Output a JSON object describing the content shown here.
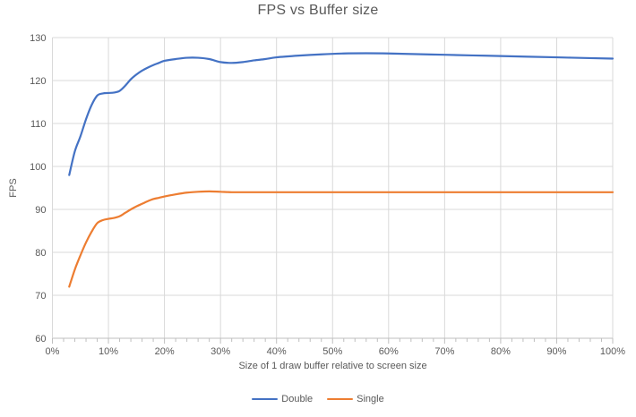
{
  "chart_data": {
    "type": "line",
    "title": "FPS vs Buffer size",
    "xlabel": "Size of 1 draw buffer relative to screen size",
    "ylabel": "FPS",
    "xlim": [
      0,
      100
    ],
    "ylim": [
      60,
      130
    ],
    "grid": true,
    "line_smoothing": true,
    "legend_position": "bottom",
    "x_tick_values": [
      0,
      10,
      20,
      30,
      40,
      50,
      60,
      70,
      80,
      90,
      100
    ],
    "x_tick_labels": [
      "0%",
      "10%",
      "20%",
      "30%",
      "40%",
      "50%",
      "60%",
      "70%",
      "80%",
      "90%",
      "100%"
    ],
    "x_minor_tick_step": 2,
    "y_tick_values": [
      60,
      70,
      80,
      90,
      100,
      110,
      120,
      130
    ],
    "y_tick_labels": [
      "60",
      "70",
      "80",
      "90",
      "100",
      "110",
      "120",
      "130"
    ],
    "colors": {
      "gridline": "#D9D9D9",
      "axis_line": "#BFBFBF",
      "text": "#595959"
    },
    "series": [
      {
        "name": "Double",
        "color": "#4472C4",
        "x": [
          3,
          4,
          5,
          6,
          7,
          8,
          9,
          10,
          11,
          12,
          13,
          14,
          15,
          16,
          17,
          18,
          19,
          20,
          22,
          24,
          26,
          28,
          30,
          32,
          34,
          36,
          38,
          40,
          44,
          48,
          52,
          56,
          60,
          65,
          70,
          75,
          80,
          85,
          90,
          95,
          100
        ],
        "y": [
          98,
          103.5,
          107,
          111,
          114.3,
          116.5,
          117,
          117.1,
          117.2,
          117.6,
          118.8,
          120.3,
          121.4,
          122.3,
          123,
          123.6,
          124.1,
          124.6,
          125,
          125.3,
          125.3,
          125,
          124.3,
          124.1,
          124.3,
          124.7,
          125,
          125.4,
          125.8,
          126.1,
          126.3,
          126.35,
          126.3,
          126.15,
          126,
          125.85,
          125.7,
          125.55,
          125.4,
          125.25,
          125.1
        ]
      },
      {
        "name": "Single",
        "color": "#ED7D31",
        "x": [
          3,
          4,
          5,
          6,
          7,
          8,
          9,
          10,
          11,
          12,
          13,
          14,
          15,
          16,
          17,
          18,
          19,
          20,
          22,
          24,
          26,
          28,
          30,
          32,
          34,
          36,
          38,
          40,
          44,
          48,
          52,
          56,
          60,
          65,
          70,
          75,
          80,
          85,
          90,
          95,
          100
        ],
        "y": [
          72,
          76,
          79.3,
          82.3,
          84.8,
          86.8,
          87.5,
          87.8,
          88,
          88.4,
          89.2,
          90,
          90.7,
          91.3,
          91.9,
          92.4,
          92.7,
          93,
          93.5,
          93.9,
          94.1,
          94.2,
          94.1,
          94,
          94,
          94,
          94,
          94,
          94,
          94,
          94,
          94,
          94,
          94,
          94,
          94,
          94,
          94,
          94,
          94,
          94
        ]
      }
    ]
  }
}
